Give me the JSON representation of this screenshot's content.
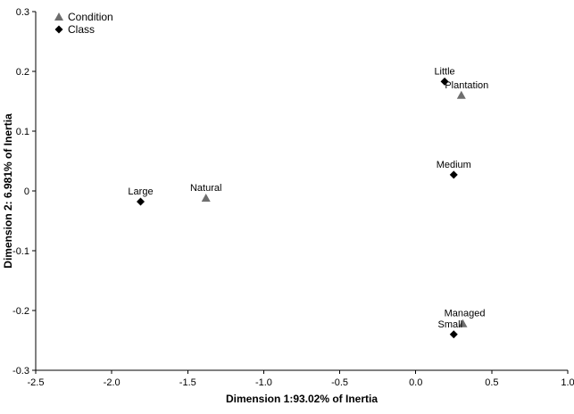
{
  "chart_data": {
    "type": "scatter",
    "title": "",
    "xlabel": "Dimension 1:93.02% of Inertia",
    "ylabel": "Dimension 2: 6.981% of Inertia",
    "xlim": [
      -2.5,
      1.0
    ],
    "ylim": [
      -0.3,
      0.3
    ],
    "grid": false,
    "legend_position": "top-left",
    "x_ticks": [
      -2.5,
      -2.0,
      -1.5,
      -1.0,
      -0.5,
      0.0,
      0.5,
      1.0
    ],
    "x_tick_labels": [
      "-2.5",
      "-2.0",
      "-1.5",
      "-1.0",
      "-0.5",
      "0.0",
      "0.5",
      "1.0"
    ],
    "y_ticks": [
      -0.3,
      -0.2,
      -0.1,
      0.0,
      0.1,
      0.2,
      0.3
    ],
    "y_tick_labels": [
      "-0.3",
      "-0.2",
      "-0.1",
      "0",
      "0.1",
      "0.2",
      "0.3"
    ],
    "colors": {
      "condition_marker": "#6e6e6e",
      "class_marker": "#000000",
      "axis": "#000000"
    },
    "legend": [
      {
        "label": "Condition",
        "marker": "triangle",
        "color": "#6e6e6e"
      },
      {
        "label": "Class",
        "marker": "diamond",
        "color": "#000000"
      }
    ],
    "series": [
      {
        "name": "Condition",
        "marker": "triangle",
        "color": "#6e6e6e",
        "points": [
          {
            "label": "Plantation",
            "x": 0.3,
            "y": 0.16,
            "label_offset": [
              6,
              0
            ]
          },
          {
            "label": "Natural",
            "x": -1.38,
            "y": -0.012
          },
          {
            "label": "Managed",
            "x": 0.31,
            "y": -0.222,
            "label_offset": [
              2,
              0
            ]
          }
        ]
      },
      {
        "name": "Class",
        "marker": "diamond",
        "color": "#000000",
        "points": [
          {
            "label": "Little",
            "x": 0.19,
            "y": 0.183
          },
          {
            "label": "Medium",
            "x": 0.25,
            "y": 0.027
          },
          {
            "label": "Large",
            "x": -1.81,
            "y": -0.018
          },
          {
            "label": "Small",
            "x": 0.25,
            "y": -0.24,
            "label_offset": [
              -4,
              0
            ]
          }
        ]
      }
    ]
  }
}
